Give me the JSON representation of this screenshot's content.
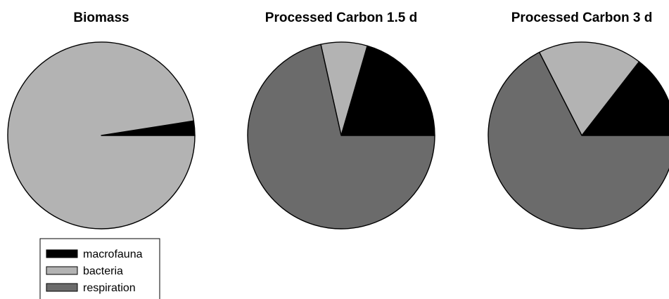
{
  "chart_data": [
    {
      "type": "pie",
      "title": "Biomass",
      "categories": [
        "macrofauna",
        "bacteria",
        "respiration"
      ],
      "values": [
        2.5,
        97.5,
        0
      ]
    },
    {
      "type": "pie",
      "title": "Processed Carbon 1.5 d",
      "categories": [
        "macrofauna",
        "bacteria",
        "respiration"
      ],
      "values": [
        20.5,
        8,
        71.5
      ]
    },
    {
      "type": "pie",
      "title": "Processed Carbon 3 d",
      "categories": [
        "macrofauna",
        "bacteria",
        "respiration"
      ],
      "values": [
        14.5,
        18,
        67.5
      ]
    }
  ],
  "legend": {
    "items": [
      {
        "label": "macrofauna",
        "color": "#000000"
      },
      {
        "label": "bacteria",
        "color": "#b3b3b3"
      },
      {
        "label": "respiration",
        "color": "#6b6b6b"
      }
    ]
  },
  "colors": {
    "macrofauna": "#000000",
    "bacteria": "#b3b3b3",
    "respiration": "#6b6b6b",
    "outline": "#000000"
  }
}
